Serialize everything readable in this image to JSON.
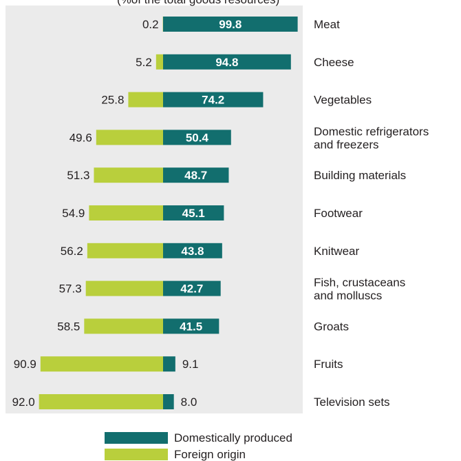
{
  "title_fragment": "(%of the total goods resources)",
  "colors": {
    "domestic": "#126e6e",
    "foreign": "#b9cf3c",
    "panel": "#ebebeb"
  },
  "legend": {
    "domestic_label": "Domestically produced",
    "foreign_label": "Foreign origin"
  },
  "chart_data": {
    "type": "bar",
    "orientation": "horizontal-diverging",
    "categories": [
      [
        "Meat"
      ],
      [
        "Cheese"
      ],
      [
        "Vegetables"
      ],
      [
        "Domestic refrigerators",
        "and  freezers"
      ],
      [
        "Building materials"
      ],
      [
        "Footwear"
      ],
      [
        "Knitwear"
      ],
      [
        "Fish, crustaceans",
        "and molluscs"
      ],
      [
        "Groats"
      ],
      [
        "Fruits"
      ],
      [
        "Television sets"
      ]
    ],
    "series": [
      {
        "name": "Domestically produced",
        "values": [
          "99.8",
          "94.8",
          "74.2",
          "50.4",
          "48.7",
          "45.1",
          "43.8",
          "42.7",
          "41.5",
          "9.1",
          "8.0"
        ]
      },
      {
        "name": "Foreign origin",
        "values": [
          "0.2",
          "5.2",
          "25.8",
          "49.6",
          "51.3",
          "54.9",
          "56.2",
          "57.3",
          "58.5",
          "90.9",
          "92.0"
        ]
      }
    ],
    "xlim": [
      0,
      100
    ],
    "legend_position": "bottom"
  }
}
